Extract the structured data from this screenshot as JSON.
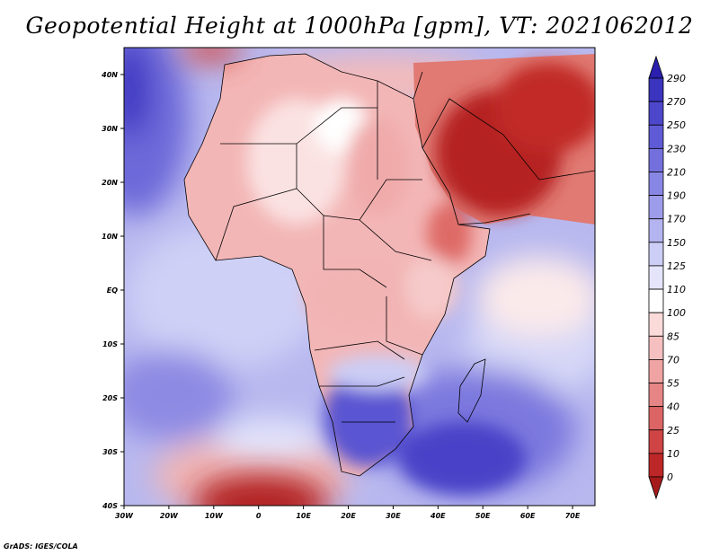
{
  "title": "Geopotential Height at 1000hPa [gpm], VT: 2021062012",
  "credit": "GrADS: IGES/COLA",
  "axes": {
    "lat_labels": [
      "40N",
      "30N",
      "20N",
      "10N",
      "EQ",
      "10S",
      "20S",
      "30S",
      "40S"
    ],
    "lon_labels": [
      "30W",
      "20W",
      "10W",
      "0",
      "10E",
      "20E",
      "30E",
      "40E",
      "50E",
      "60E",
      "70E"
    ],
    "lat_range": [
      -40,
      45
    ],
    "lon_range": [
      -30,
      75
    ]
  },
  "colorbar": {
    "levels": [
      "290",
      "270",
      "250",
      "230",
      "210",
      "190",
      "170",
      "150",
      "125",
      "110",
      "100",
      "85",
      "70",
      "55",
      "40",
      "25",
      "10",
      "0"
    ],
    "colors": [
      "#2a1fae",
      "#3b34bf",
      "#4d47cc",
      "#5f5bd6",
      "#7370dd",
      "#8886e4",
      "#9d9cea",
      "#b4b4f0",
      "#cdcef6",
      "#e4e5fb",
      "#ffffff",
      "#fbdada",
      "#f6c0c0",
      "#efa3a3",
      "#e68585",
      "#dc6464",
      "#cf4444",
      "#be2727",
      "#a51a1a"
    ]
  },
  "map_colors": {
    "ocean": "#b6b6ef",
    "deep_blue": "#3d35c2",
    "mid_blue": "#8b87e3",
    "light_blue": "#d2d3f6",
    "land_pink": "#f2b1b1",
    "light_pink": "#f9d6d6",
    "red": "#d9564f",
    "dark_red": "#b22121"
  }
}
